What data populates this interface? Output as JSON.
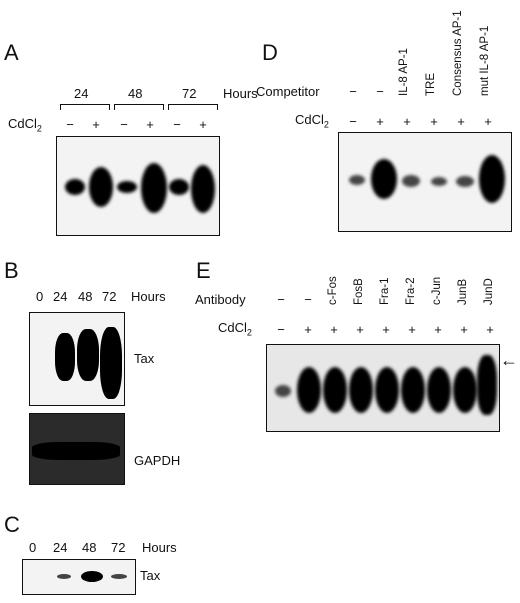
{
  "panelA": {
    "letter": "A",
    "time_labels": [
      "24",
      "48",
      "72"
    ],
    "time_unit": "Hours",
    "treatment_label": "CdCl",
    "treatment_sub": "2",
    "lanes": [
      "−",
      "+",
      "−",
      "+",
      "−",
      "+"
    ]
  },
  "panelB": {
    "letter": "B",
    "time_labels": [
      "0",
      "24",
      "48",
      "72"
    ],
    "time_unit": "Hours",
    "blot1_label": "Tax",
    "blot2_label": "GAPDH"
  },
  "panelC": {
    "letter": "C",
    "time_labels": [
      "0",
      "24",
      "48",
      "72"
    ],
    "time_unit": "Hours",
    "blot_label": "Tax"
  },
  "panelD": {
    "letter": "D",
    "competitor_label": "Competitor",
    "treatment_label": "CdCl",
    "treatment_sub": "2",
    "competitor_row": [
      "−",
      "−",
      "IL-8 AP-1",
      "TRE",
      "Consensus AP-1",
      "mut IL-8 AP-1"
    ],
    "treatment_row": [
      "−",
      "+",
      "+",
      "+",
      "+",
      "+"
    ]
  },
  "panelE": {
    "letter": "E",
    "antibody_label": "Antibody",
    "treatment_label": "CdCl",
    "treatment_sub": "2",
    "antibody_row": [
      "−",
      "−",
      "c-Fos",
      "FosB",
      "Fra-1",
      "Fra-2",
      "c-Jun",
      "JunB",
      "JunD"
    ],
    "treatment_row": [
      "−",
      "+",
      "+",
      "+",
      "+",
      "+",
      "+",
      "+",
      "+"
    ],
    "arrow": "←"
  }
}
